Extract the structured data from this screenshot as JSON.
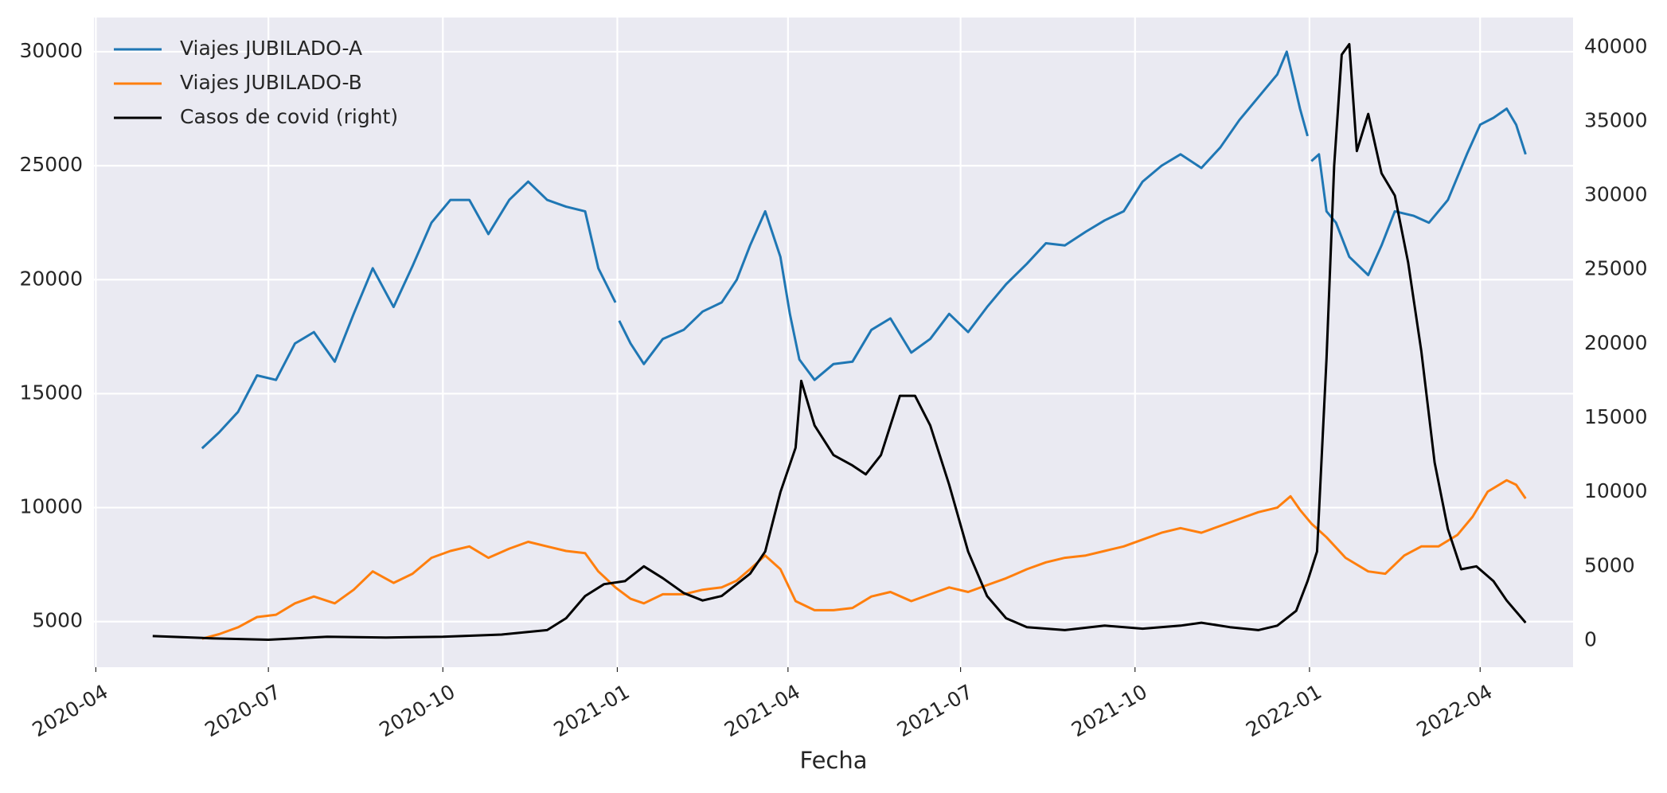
{
  "chart_data": {
    "type": "line",
    "xlabel": "Fecha",
    "ylabel": "",
    "xlim": [
      "2020-03-31",
      "2022-05-20"
    ],
    "ylim": [
      3000,
      31500
    ],
    "y2lim": [
      -1800,
      42000
    ],
    "x_ticks": [
      "2020-04-01",
      "2020-07-01",
      "2020-10-01",
      "2021-01-01",
      "2021-04-01",
      "2021-07-01",
      "2021-10-01",
      "2022-01-01",
      "2022-04-01"
    ],
    "x_tick_labels": [
      "2020-04",
      "2020-07",
      "2020-10",
      "2021-01",
      "2021-04",
      "2021-07",
      "2021-10",
      "2022-01",
      "2022-04"
    ],
    "y_ticks": [
      5000,
      10000,
      15000,
      20000,
      25000,
      30000
    ],
    "y2_ticks": [
      0,
      5000,
      10000,
      15000,
      20000,
      25000,
      30000,
      35000,
      40000
    ],
    "grid": true,
    "legend_position": "top-left",
    "series": [
      {
        "name": "Viajes JUBILADO-A",
        "axis": "left",
        "color": "#1f77b4",
        "points": [
          [
            "2020-05-27",
            12600
          ],
          [
            "2020-06-05",
            13300
          ],
          [
            "2020-06-15",
            14200
          ],
          [
            "2020-06-25",
            15800
          ],
          [
            "2020-07-05",
            15600
          ],
          [
            "2020-07-15",
            17200
          ],
          [
            "2020-07-25",
            17700
          ],
          [
            "2020-08-05",
            16400
          ],
          [
            "2020-08-15",
            18500
          ],
          [
            "2020-08-25",
            20500
          ],
          [
            "2020-09-05",
            18800
          ],
          [
            "2020-09-15",
            20600
          ],
          [
            "2020-09-25",
            22500
          ],
          [
            "2020-10-05",
            23500
          ],
          [
            "2020-10-15",
            23500
          ],
          [
            "2020-10-25",
            22000
          ],
          [
            "2020-11-05",
            23500
          ],
          [
            "2020-11-15",
            24300
          ],
          [
            "2020-11-25",
            23500
          ],
          [
            "2020-12-05",
            23200
          ],
          [
            "2020-12-15",
            23000
          ],
          [
            "2020-12-22",
            20500
          ],
          [
            "2020-12-31",
            19000
          ]
        ]
      },
      {
        "name": "",
        "axis": "left",
        "color": "#1f77b4",
        "points": [
          [
            "2021-01-02",
            18200
          ],
          [
            "2021-01-08",
            17200
          ],
          [
            "2021-01-15",
            16300
          ],
          [
            "2021-01-25",
            17400
          ],
          [
            "2021-02-05",
            17800
          ],
          [
            "2021-02-15",
            18600
          ],
          [
            "2021-02-25",
            19000
          ],
          [
            "2021-03-05",
            20000
          ],
          [
            "2021-03-12",
            21500
          ],
          [
            "2021-03-20",
            23000
          ],
          [
            "2021-03-28",
            21000
          ],
          [
            "2021-04-02",
            18500
          ],
          [
            "2021-04-07",
            16500
          ],
          [
            "2021-04-15",
            15600
          ],
          [
            "2021-04-25",
            16300
          ],
          [
            "2021-05-05",
            16400
          ],
          [
            "2021-05-15",
            17800
          ],
          [
            "2021-05-25",
            18300
          ],
          [
            "2021-06-05",
            16800
          ],
          [
            "2021-06-15",
            17400
          ],
          [
            "2021-06-25",
            18500
          ],
          [
            "2021-07-05",
            17700
          ],
          [
            "2021-07-15",
            18800
          ],
          [
            "2021-07-25",
            19800
          ],
          [
            "2021-08-05",
            20700
          ],
          [
            "2021-08-15",
            21600
          ],
          [
            "2021-08-25",
            21500
          ],
          [
            "2021-09-05",
            22100
          ],
          [
            "2021-09-15",
            22600
          ],
          [
            "2021-09-25",
            23000
          ],
          [
            "2021-10-05",
            24300
          ],
          [
            "2021-10-15",
            25000
          ],
          [
            "2021-10-25",
            25500
          ],
          [
            "2021-11-05",
            24900
          ],
          [
            "2021-11-15",
            25800
          ],
          [
            "2021-11-25",
            27000
          ],
          [
            "2021-12-05",
            28000
          ],
          [
            "2021-12-15",
            29000
          ],
          [
            "2021-12-20",
            30000
          ],
          [
            "2021-12-27",
            27500
          ],
          [
            "2021-12-31",
            26300
          ]
        ]
      },
      {
        "name": "",
        "axis": "left",
        "color": "#1f77b4",
        "points": [
          [
            "2022-01-02",
            25200
          ],
          [
            "2022-01-06",
            25500
          ],
          [
            "2022-01-10",
            23000
          ],
          [
            "2022-01-15",
            22500
          ],
          [
            "2022-01-22",
            21000
          ],
          [
            "2022-02-01",
            20200
          ],
          [
            "2022-02-08",
            21500
          ],
          [
            "2022-02-15",
            23000
          ],
          [
            "2022-02-25",
            22800
          ],
          [
            "2022-03-05",
            22500
          ],
          [
            "2022-03-15",
            23500
          ],
          [
            "2022-03-25",
            25500
          ],
          [
            "2022-04-01",
            26800
          ],
          [
            "2022-04-08",
            27100
          ],
          [
            "2022-04-15",
            27500
          ],
          [
            "2022-04-20",
            26800
          ],
          [
            "2022-04-25",
            25500
          ]
        ]
      },
      {
        "name": "Viajes JUBILADO-B",
        "axis": "left",
        "color": "#ff7f0e",
        "points": [
          [
            "2020-05-27",
            4250
          ],
          [
            "2020-06-05",
            4450
          ],
          [
            "2020-06-15",
            4750
          ],
          [
            "2020-06-25",
            5200
          ],
          [
            "2020-07-05",
            5300
          ],
          [
            "2020-07-15",
            5800
          ],
          [
            "2020-07-25",
            6100
          ],
          [
            "2020-08-05",
            5800
          ],
          [
            "2020-08-15",
            6400
          ],
          [
            "2020-08-25",
            7200
          ],
          [
            "2020-09-05",
            6700
          ],
          [
            "2020-09-15",
            7100
          ],
          [
            "2020-09-25",
            7800
          ],
          [
            "2020-10-05",
            8100
          ],
          [
            "2020-10-15",
            8300
          ],
          [
            "2020-10-25",
            7800
          ],
          [
            "2020-11-05",
            8200
          ],
          [
            "2020-11-15",
            8500
          ],
          [
            "2020-11-25",
            8300
          ],
          [
            "2020-12-05",
            8100
          ],
          [
            "2020-12-15",
            8000
          ],
          [
            "2020-12-22",
            7200
          ],
          [
            "2020-12-31",
            6500
          ],
          [
            "2021-01-08",
            6000
          ],
          [
            "2021-01-15",
            5800
          ],
          [
            "2021-01-25",
            6200
          ],
          [
            "2021-02-05",
            6200
          ],
          [
            "2021-02-15",
            6400
          ],
          [
            "2021-02-25",
            6500
          ],
          [
            "2021-03-05",
            6800
          ],
          [
            "2021-03-12",
            7300
          ],
          [
            "2021-03-20",
            7900
          ],
          [
            "2021-03-28",
            7300
          ],
          [
            "2021-04-05",
            5900
          ],
          [
            "2021-04-15",
            5500
          ],
          [
            "2021-04-25",
            5500
          ],
          [
            "2021-05-05",
            5600
          ],
          [
            "2021-05-15",
            6100
          ],
          [
            "2021-05-25",
            6300
          ],
          [
            "2021-06-05",
            5900
          ],
          [
            "2021-06-15",
            6200
          ],
          [
            "2021-06-25",
            6500
          ],
          [
            "2021-07-05",
            6300
          ],
          [
            "2021-07-15",
            6600
          ],
          [
            "2021-07-25",
            6900
          ],
          [
            "2021-08-05",
            7300
          ],
          [
            "2021-08-15",
            7600
          ],
          [
            "2021-08-25",
            7800
          ],
          [
            "2021-09-05",
            7900
          ],
          [
            "2021-09-15",
            8100
          ],
          [
            "2021-09-25",
            8300
          ],
          [
            "2021-10-05",
            8600
          ],
          [
            "2021-10-15",
            8900
          ],
          [
            "2021-10-25",
            9100
          ],
          [
            "2021-11-05",
            8900
          ],
          [
            "2021-11-15",
            9200
          ],
          [
            "2021-11-25",
            9500
          ],
          [
            "2021-12-05",
            9800
          ],
          [
            "2021-12-15",
            10000
          ],
          [
            "2021-12-22",
            10500
          ],
          [
            "2021-12-27",
            9900
          ],
          [
            "2022-01-02",
            9300
          ],
          [
            "2022-01-10",
            8700
          ],
          [
            "2022-01-20",
            7800
          ],
          [
            "2022-02-01",
            7200
          ],
          [
            "2022-02-10",
            7100
          ],
          [
            "2022-02-20",
            7900
          ],
          [
            "2022-03-01",
            8300
          ],
          [
            "2022-03-10",
            8300
          ],
          [
            "2022-03-20",
            8800
          ],
          [
            "2022-03-28",
            9600
          ],
          [
            "2022-04-05",
            10700
          ],
          [
            "2022-04-15",
            11200
          ],
          [
            "2022-04-20",
            11000
          ],
          [
            "2022-04-25",
            10400
          ]
        ]
      },
      {
        "name": "Casos de covid (right)",
        "axis": "right",
        "color": "#000000",
        "points": [
          [
            "2020-05-01",
            300
          ],
          [
            "2020-06-01",
            150
          ],
          [
            "2020-07-01",
            50
          ],
          [
            "2020-08-01",
            250
          ],
          [
            "2020-09-01",
            200
          ],
          [
            "2020-10-01",
            250
          ],
          [
            "2020-11-01",
            400
          ],
          [
            "2020-11-25",
            700
          ],
          [
            "2020-12-05",
            1500
          ],
          [
            "2020-12-15",
            3000
          ],
          [
            "2020-12-25",
            3800
          ],
          [
            "2021-01-05",
            4000
          ],
          [
            "2021-01-15",
            5000
          ],
          [
            "2021-01-25",
            4200
          ],
          [
            "2021-02-05",
            3200
          ],
          [
            "2021-02-15",
            2700
          ],
          [
            "2021-02-25",
            3000
          ],
          [
            "2021-03-05",
            3800
          ],
          [
            "2021-03-12",
            4500
          ],
          [
            "2021-03-20",
            6000
          ],
          [
            "2021-03-28",
            10000
          ],
          [
            "2021-04-05",
            13000
          ],
          [
            "2021-04-08",
            17500
          ],
          [
            "2021-04-15",
            14500
          ],
          [
            "2021-04-25",
            12500
          ],
          [
            "2021-05-05",
            11800
          ],
          [
            "2021-05-12",
            11200
          ],
          [
            "2021-05-20",
            12500
          ],
          [
            "2021-05-30",
            16500
          ],
          [
            "2021-06-07",
            16500
          ],
          [
            "2021-06-15",
            14500
          ],
          [
            "2021-06-25",
            10500
          ],
          [
            "2021-07-05",
            6000
          ],
          [
            "2021-07-15",
            3000
          ],
          [
            "2021-07-25",
            1500
          ],
          [
            "2021-08-05",
            900
          ],
          [
            "2021-08-25",
            700
          ],
          [
            "2021-09-15",
            1000
          ],
          [
            "2021-10-05",
            800
          ],
          [
            "2021-10-25",
            1000
          ],
          [
            "2021-11-05",
            1200
          ],
          [
            "2021-11-20",
            900
          ],
          [
            "2021-12-05",
            700
          ],
          [
            "2021-12-15",
            1000
          ],
          [
            "2021-12-25",
            2000
          ],
          [
            "2021-12-31",
            4000
          ],
          [
            "2022-01-05",
            6000
          ],
          [
            "2022-01-10",
            19000
          ],
          [
            "2022-01-14",
            32000
          ],
          [
            "2022-01-18",
            39500
          ],
          [
            "2022-01-22",
            40200
          ],
          [
            "2022-01-26",
            33000
          ],
          [
            "2022-02-01",
            35500
          ],
          [
            "2022-02-08",
            31500
          ],
          [
            "2022-02-15",
            30000
          ],
          [
            "2022-02-22",
            25500
          ],
          [
            "2022-03-01",
            19500
          ],
          [
            "2022-03-08",
            12000
          ],
          [
            "2022-03-15",
            7500
          ],
          [
            "2022-03-22",
            4800
          ],
          [
            "2022-03-30",
            5000
          ],
          [
            "2022-04-08",
            4000
          ],
          [
            "2022-04-15",
            2700
          ],
          [
            "2022-04-25",
            1200
          ]
        ]
      }
    ]
  }
}
